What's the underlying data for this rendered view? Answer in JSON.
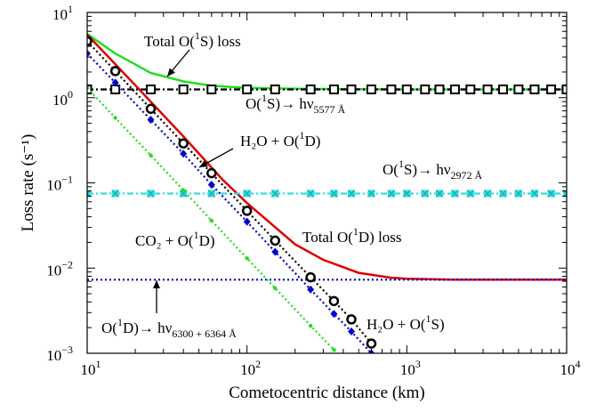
{
  "chart_data": {
    "type": "line",
    "xlabel": "Cometocentric distance (km)",
    "ylabel": "Loss rate (s⁻¹)",
    "xscale": "log",
    "yscale": "log",
    "xlim": [
      10,
      10000
    ],
    "ylim": [
      0.001,
      10
    ],
    "grid": false,
    "x_ticks": [
      {
        "value": 10,
        "base": "10",
        "exp": "1"
      },
      {
        "value": 100,
        "base": "10",
        "exp": "2"
      },
      {
        "value": 1000,
        "base": "10",
        "exp": "3"
      },
      {
        "value": 10000,
        "base": "10",
        "exp": "4"
      }
    ],
    "y_ticks": [
      {
        "value": 0.001,
        "base": "10",
        "exp": "−3"
      },
      {
        "value": 0.01,
        "base": "10",
        "exp": "−2"
      },
      {
        "value": 0.1,
        "base": "10",
        "exp": "−1"
      },
      {
        "value": 1,
        "base": "10",
        "exp": "0"
      },
      {
        "value": 10,
        "base": "10",
        "exp": "1"
      }
    ],
    "series": [
      {
        "color": "#22dd22",
        "style": "solid",
        "x": [
          10,
          15,
          25,
          40,
          60,
          100,
          200,
          400,
          1000,
          10000
        ],
        "y": [
          5.6,
          3.3,
          1.95,
          1.55,
          1.38,
          1.3,
          1.27,
          1.26,
          1.25,
          1.25
        ]
      },
      {
        "color": "#dd0000",
        "style": "solid",
        "x": [
          10,
          20,
          40,
          70,
          100,
          200,
          300,
          500,
          800,
          1000,
          2000,
          10000
        ],
        "y": [
          5.5,
          1.4,
          0.35,
          0.11,
          0.058,
          0.019,
          0.0125,
          0.0088,
          0.0077,
          0.0075,
          0.0073,
          0.0073
        ]
      },
      {
        "color": "#000000",
        "style": "dashdot",
        "marker": "square",
        "x": [
          10,
          15,
          25,
          40,
          60,
          100,
          150,
          250,
          350,
          450,
          600,
          800,
          1000,
          1300,
          1600,
          2000,
          2500,
          3200,
          4000,
          5000,
          6300,
          8000,
          10000
        ],
        "y": [
          1.25,
          1.25,
          1.25,
          1.25,
          1.25,
          1.25,
          1.25,
          1.25,
          1.25,
          1.25,
          1.25,
          1.25,
          1.25,
          1.25,
          1.25,
          1.25,
          1.25,
          1.25,
          1.25,
          1.25,
          1.25,
          1.25,
          1.25
        ]
      },
      {
        "color": "#33dddd",
        "style": "dashdot",
        "marker": "x",
        "x": [
          10,
          15,
          25,
          40,
          60,
          100,
          150,
          250,
          350,
          450,
          600,
          800,
          1000,
          1300,
          1600,
          2000,
          2500,
          3200,
          4000,
          5000,
          6300,
          8000,
          10000
        ],
        "y": [
          0.075,
          0.075,
          0.075,
          0.075,
          0.075,
          0.075,
          0.075,
          0.075,
          0.075,
          0.075,
          0.075,
          0.075,
          0.075,
          0.075,
          0.075,
          0.075,
          0.075,
          0.075,
          0.075,
          0.075,
          0.075,
          0.075,
          0.075
        ]
      },
      {
        "color": "#0000cc",
        "style": "dotted",
        "x": [
          10,
          10000
        ],
        "y": [
          0.0073,
          0.0073
        ]
      },
      {
        "color": "#000000",
        "style": "dotted",
        "marker": "circle",
        "x": [
          10,
          15,
          25,
          40,
          60,
          100,
          150,
          250,
          350,
          450,
          600
        ],
        "y": [
          4.6,
          2.05,
          0.74,
          0.29,
          0.13,
          0.047,
          0.021,
          0.0078,
          0.0041,
          0.0025,
          0.0013
        ]
      },
      {
        "color": "#0000cc",
        "style": "dotted",
        "marker": "diamond",
        "x": [
          10,
          15,
          25,
          40,
          60,
          100,
          150,
          250,
          350,
          450,
          600
        ],
        "y": [
          3.3,
          1.5,
          0.55,
          0.22,
          0.095,
          0.035,
          0.0155,
          0.0056,
          0.0029,
          0.0018,
          0.001
        ]
      },
      {
        "color": "#22dd22",
        "style": "dotted",
        "marker": "dot",
        "x": [
          10,
          15,
          25,
          40,
          60,
          100,
          150,
          250,
          350,
          400
        ],
        "y": [
          1.3,
          0.58,
          0.21,
          0.082,
          0.036,
          0.013,
          0.0058,
          0.0021,
          0.0011,
          0.00085
        ]
      }
    ],
    "annotations": [
      {
        "pre": "Total O(",
        "sup": "1",
        "post": "S) loss",
        "sub": ""
      },
      {
        "pre": "O(",
        "sup": "1",
        "post": "S)→ hν",
        "sub": "5577 Å"
      },
      {
        "pre": "H₂O + O(",
        "sup": "1",
        "post": "D)",
        "sub": ""
      },
      {
        "pre": "O(",
        "sup": "1",
        "post": "S)→ hν",
        "sub": "2972 Å"
      },
      {
        "pre": "Total O(",
        "sup": "1",
        "post": "D) loss",
        "sub": ""
      },
      {
        "pre": "CO₂ + O(",
        "sup": "1",
        "post": "D)",
        "sub": ""
      },
      {
        "pre": "O(",
        "sup": "1",
        "post": "D)→ hν",
        "sub": "6300 + 6364 Å"
      },
      {
        "pre": "H₂O + O(",
        "sup": "1",
        "post": "S)",
        "sub": ""
      }
    ]
  }
}
